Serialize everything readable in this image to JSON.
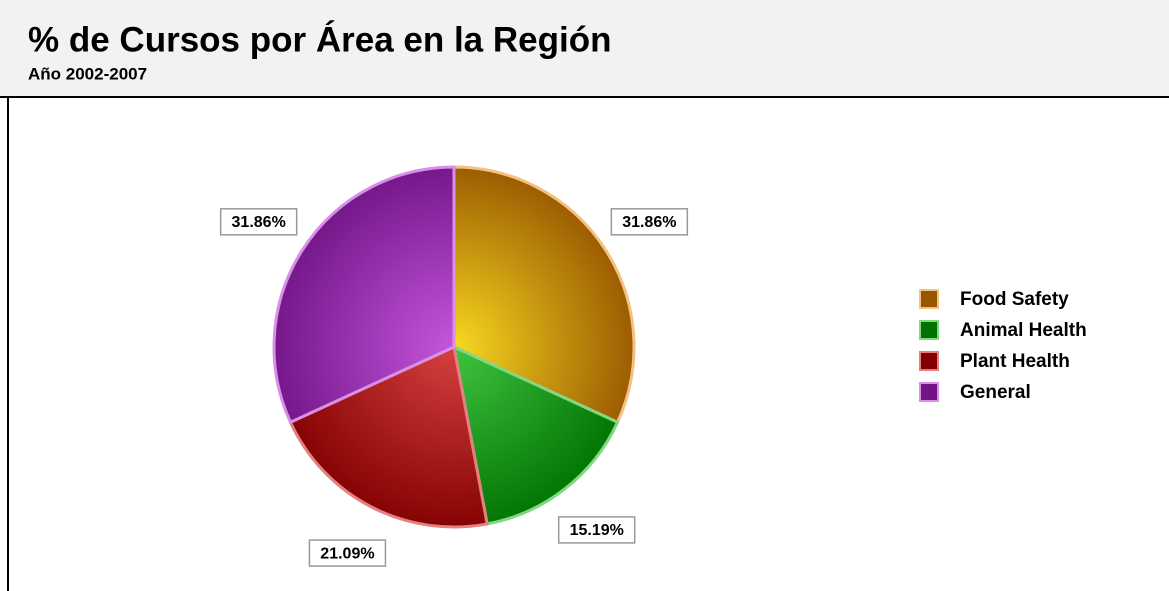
{
  "chart_data": {
    "type": "pie",
    "title": "% de Cursos por Área en la Región",
    "subtitle": "Año 2002-2007",
    "categories": [
      "Food Safety",
      "Animal Health",
      "Plant Health",
      "General"
    ],
    "values": [
      31.86,
      15.19,
      21.09,
      31.86
    ],
    "value_labels": [
      "31.86%",
      "15.19%",
      "21.09%",
      "31.86%"
    ],
    "colors": [
      "#e88400",
      "#00b000",
      "#c80000",
      "#b01ed0"
    ],
    "legend": "right"
  }
}
